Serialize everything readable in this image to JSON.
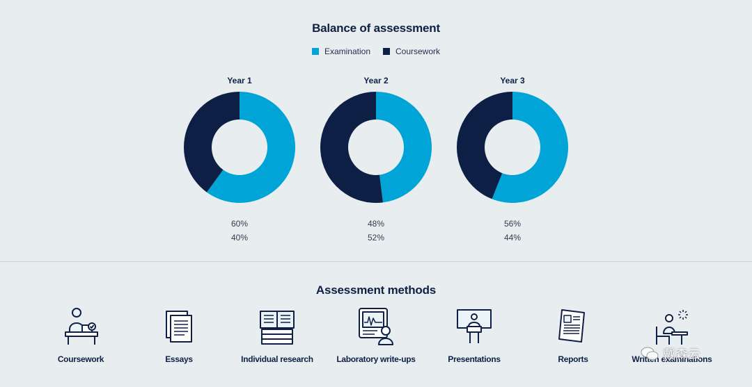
{
  "balance_title": "Balance of assessment",
  "legend": [
    {
      "label": "Examination",
      "color": "#00a4d6"
    },
    {
      "label": "Coursework",
      "color": "#0d1f45"
    }
  ],
  "chart_data": [
    {
      "type": "pie",
      "title": "Year 1",
      "labels": [
        "Examination",
        "Coursework"
      ],
      "values": [
        60,
        40
      ],
      "value_labels": [
        "60%",
        "40%"
      ],
      "donut": true
    },
    {
      "type": "pie",
      "title": "Year 2",
      "labels": [
        "Examination",
        "Coursework"
      ],
      "values": [
        48,
        52
      ],
      "value_labels": [
        "48%",
        "52%"
      ],
      "donut": true
    },
    {
      "type": "pie",
      "title": "Year 3",
      "labels": [
        "Examination",
        "Coursework"
      ],
      "values": [
        56,
        44
      ],
      "value_labels": [
        "56%",
        "44%"
      ],
      "donut": true
    }
  ],
  "methods_title": "Assessment methods",
  "methods": [
    {
      "label": "Coursework",
      "icon": "coursework-icon"
    },
    {
      "label": "Essays",
      "icon": "essays-icon"
    },
    {
      "label": "Individual research",
      "icon": "research-icon"
    },
    {
      "label": "Laboratory write-ups",
      "icon": "laboratory-icon"
    },
    {
      "label": "Presentations",
      "icon": "presentation-icon"
    },
    {
      "label": "Reports",
      "icon": "reports-icon"
    },
    {
      "label": "Written examinations",
      "icon": "exam-icon"
    }
  ],
  "watermark": {
    "text": "戴森云",
    "icon": "wechat-icon"
  }
}
